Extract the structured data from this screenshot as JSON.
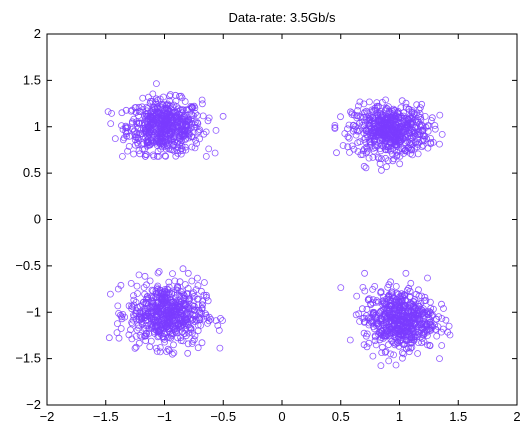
{
  "chart_data": {
    "type": "scatter",
    "title": "Data-rate: 3.5Gb/s",
    "xlabel": "",
    "ylabel": "",
    "xlim": [
      -2,
      2
    ],
    "ylim": [
      -2,
      2
    ],
    "xticks": [
      -2,
      -1.5,
      -1,
      -0.5,
      0,
      0.5,
      1,
      1.5,
      2
    ],
    "xtick_labels": [
      "−2",
      "−1.5",
      "−1",
      "−0.5",
      "0",
      "0.5",
      "1",
      "1.5",
      "2"
    ],
    "yticks": [
      2,
      1.5,
      1,
      0.5,
      0,
      -0.5,
      -1,
      -1.5,
      -2
    ],
    "ytick_labels": [
      "2",
      "1.5",
      "1",
      "0.5",
      "0",
      "−0.5",
      "−1",
      "−1.5",
      "−2"
    ],
    "grid": false,
    "marker": "circle",
    "marker_color": "#7b3cff",
    "clusters": [
      {
        "center": [
          -1.0,
          1.0
        ],
        "x_range": [
          -1.48,
          -0.5
        ],
        "y_range": [
          0.68,
          1.56
        ]
      },
      {
        "center": [
          0.92,
          0.96
        ],
        "x_range": [
          0.45,
          1.45
        ],
        "y_range": [
          0.53,
          1.38
        ]
      },
      {
        "center": [
          -0.98,
          -1.02
        ],
        "x_range": [
          -1.47,
          -0.48
        ],
        "y_range": [
          -1.58,
          -0.53
        ]
      },
      {
        "center": [
          1.0,
          -1.08
        ],
        "x_range": [
          0.5,
          1.43
        ],
        "y_range": [
          -1.6,
          -0.58
        ]
      }
    ],
    "points_per_cluster": 600
  }
}
